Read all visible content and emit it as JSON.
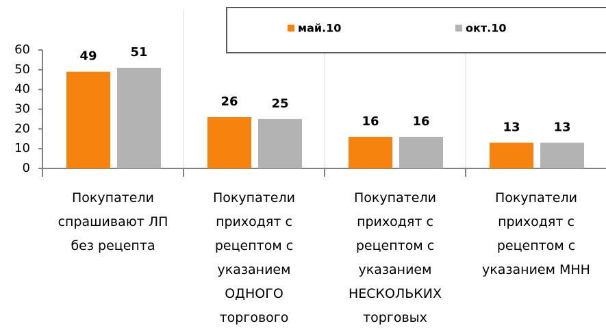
{
  "chart_data": {
    "type": "bar",
    "categories": [
      "Покупатели\nспрашивают ЛП\nбез рецепта",
      "Покупатели\nприходят с\nрецептом с\nуказанием\nОДНОГО\nторгового",
      "Покупатели\nприходят с\nрецептом с\nуказанием\nНЕСКОЛЬКИХ\nторговых",
      "Покупатели\nприходят с\nрецептом с\nуказанием МНН"
    ],
    "series": [
      {
        "name": "май.10",
        "color": "#f7830f",
        "values": [
          49,
          26,
          16,
          13
        ]
      },
      {
        "name": "окт.10",
        "color": "#b3b3b3",
        "values": [
          51,
          25,
          16,
          13
        ]
      }
    ],
    "ylim": [
      0,
      60
    ],
    "yticks": [
      0,
      10,
      20,
      30,
      40,
      50,
      60
    ],
    "legend": "top-right"
  }
}
